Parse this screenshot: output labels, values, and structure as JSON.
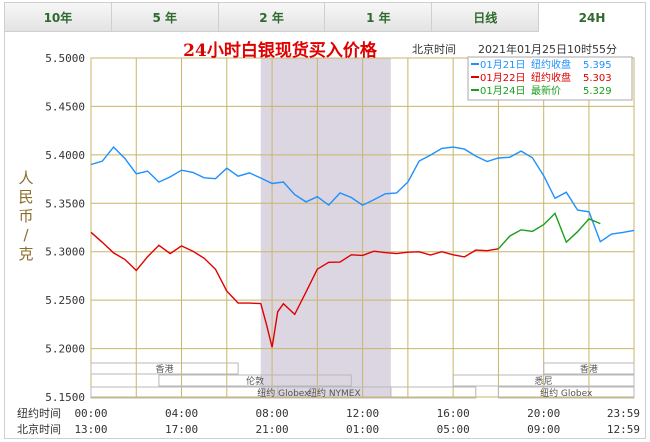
{
  "tabs": [
    {
      "label": "10年",
      "active": false
    },
    {
      "label": "5 年",
      "active": false
    },
    {
      "label": "2 年",
      "active": false
    },
    {
      "label": "1 年",
      "active": false
    },
    {
      "label": "日线",
      "active": false
    },
    {
      "label": "24H",
      "active": true
    }
  ],
  "colors": {
    "grid": "#c8b56a",
    "title": "#e00000",
    "axis_text": "#333333",
    "series_blue": "#1e90ff",
    "series_red": "#e00000",
    "series_green": "#1a9e1a",
    "shade": "#dcd6e2"
  },
  "chart_data": {
    "type": "line",
    "title": "24小时白银现货买入价格",
    "timezone_label": "北京时间",
    "timestamp": "2021年01月25日10时55分",
    "ylabel": "人民币/克",
    "ylim": [
      5.15,
      5.5
    ],
    "y_ticks": [
      "5.5000",
      "5.4500",
      "5.4000",
      "5.3500",
      "5.3000",
      "5.2500",
      "5.2000",
      "5.1500"
    ],
    "x_rows": [
      {
        "label": "纽约时间",
        "ticks": [
          "00:00",
          "04:00",
          "08:00",
          "12:00",
          "16:00",
          "20:00",
          "23:59"
        ]
      },
      {
        "label": "北京时间",
        "ticks": [
          "13:00",
          "17:00",
          "21:00",
          "01:00",
          "05:00",
          "09:00",
          "12:59"
        ]
      }
    ],
    "shaded_range_hours": [
      7.5,
      13.25
    ],
    "sessions": [
      {
        "name": "香港",
        "ranges": [
          [
            -1.5,
            6.5
          ],
          [
            20.0,
            28.0
          ]
        ]
      },
      {
        "name": "伦敦",
        "ranges": [
          [
            3.0,
            11.5
          ]
        ]
      },
      {
        "name": "纽约 NYMEX",
        "ranges": [
          [
            8.25,
            13.25
          ]
        ]
      },
      {
        "name": "纽约 Globex",
        "ranges": [
          [
            0,
            17.0
          ],
          [
            18.0,
            23.99
          ]
        ]
      },
      {
        "name": "悉尼",
        "ranges": [
          [
            16.0,
            24.0
          ]
        ]
      }
    ],
    "legend": [
      {
        "label": "01月21日",
        "desc": "纽约收盘",
        "value": "5.395",
        "color": "#1e90ff"
      },
      {
        "label": "01月22日",
        "desc": "纽约收盘",
        "value": "5.303",
        "color": "#e00000"
      },
      {
        "label": "01月24日",
        "desc": "最新价",
        "value": "5.329",
        "color": "#1a9e1a"
      }
    ],
    "series": [
      {
        "name": "01月21日",
        "color": "#1e90ff",
        "x": [
          0,
          0.5,
          1.0,
          1.5,
          2.0,
          2.5,
          3.0,
          3.5,
          4.0,
          4.5,
          5.0,
          5.5,
          6.0,
          6.5,
          7.0,
          7.5,
          8.0,
          8.5,
          9.0,
          9.5,
          10.0,
          10.5,
          11.0,
          11.5,
          12.0,
          12.5,
          13.0,
          13.5,
          14.0,
          14.5,
          15.0,
          15.5,
          16.0,
          16.5,
          17.0,
          17.5,
          18.0,
          18.5,
          19.0,
          19.5,
          20.0,
          20.5,
          21.0,
          21.5,
          22.0,
          22.5,
          23.0,
          23.5,
          23.99
        ],
        "y": [
          5.39,
          5.392,
          5.41,
          5.395,
          5.38,
          5.385,
          5.37,
          5.378,
          5.385,
          5.38,
          5.378,
          5.375,
          5.385,
          5.38,
          5.38,
          5.376,
          5.372,
          5.37,
          5.36,
          5.352,
          5.355,
          5.35,
          5.36,
          5.355,
          5.35,
          5.352,
          5.36,
          5.362,
          5.37,
          5.395,
          5.4,
          5.405,
          5.41,
          5.405,
          5.398,
          5.395,
          5.395,
          5.398,
          5.405,
          5.395,
          5.38,
          5.355,
          5.36,
          5.345,
          5.34,
          5.31,
          5.32,
          5.318,
          5.322
        ]
      },
      {
        "name": "01月22日",
        "color": "#e00000",
        "x": [
          0,
          0.5,
          1.0,
          1.5,
          2.0,
          2.5,
          3.0,
          3.5,
          4.0,
          4.5,
          5.0,
          5.5,
          6.0,
          6.5,
          7.0,
          7.5,
          7.75,
          8.0,
          8.25,
          8.5,
          9.0,
          9.5,
          10.0,
          10.5,
          11.0,
          11.5,
          12.0,
          12.5,
          13.0,
          13.5,
          14.0,
          14.5,
          15.0,
          15.5,
          16.0,
          16.5,
          17.0,
          17.5,
          18.0
        ],
        "y": [
          5.32,
          5.31,
          5.3,
          5.29,
          5.282,
          5.295,
          5.305,
          5.3,
          5.305,
          5.3,
          5.295,
          5.28,
          5.26,
          5.248,
          5.245,
          5.248,
          5.225,
          5.2,
          5.24,
          5.245,
          5.235,
          5.26,
          5.28,
          5.29,
          5.29,
          5.295,
          5.298,
          5.3,
          5.298,
          5.3,
          5.298,
          5.3,
          5.298,
          5.298,
          5.298,
          5.295,
          5.3,
          5.303,
          5.303
        ]
      },
      {
        "name": "01月24日",
        "color": "#1a9e1a",
        "x": [
          18.0,
          18.5,
          19.0,
          19.5,
          20.0,
          20.5,
          21.0,
          21.5,
          22.0,
          22.5
        ],
        "y": [
          5.303,
          5.318,
          5.322,
          5.32,
          5.33,
          5.338,
          5.31,
          5.322,
          5.332,
          5.329
        ]
      }
    ]
  }
}
